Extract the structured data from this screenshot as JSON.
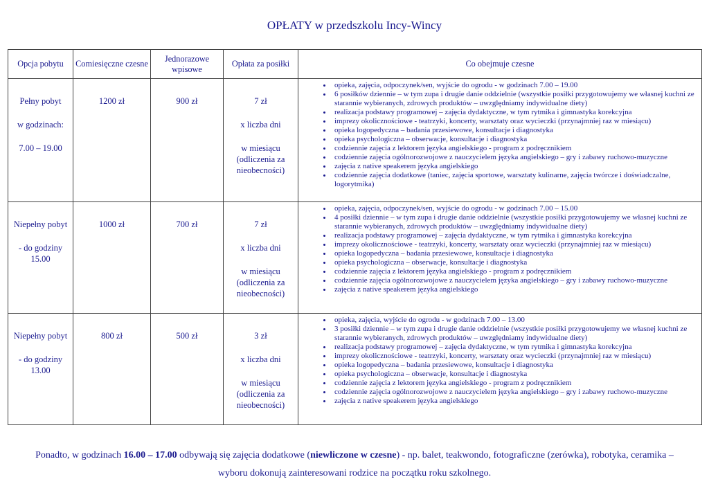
{
  "title": "OPŁATY w przedszkolu Incy-Wincy",
  "colors": {
    "text_navy": "#1b1b8f",
    "border": "#404040",
    "background": "#ffffff"
  },
  "table": {
    "columns": [
      "Opcja pobytu",
      "Comiesięczne czesne",
      "Jednorazowe wpisowe",
      "Opłata za posiłki",
      "Co obejmuje czesne"
    ],
    "rows": [
      {
        "option_lines": [
          "Pełny pobyt",
          "w godzinach:",
          "7.00 – 19.00"
        ],
        "monthly_fee": "1200 zł",
        "entry_fee": "900 zł",
        "meal_fee_lines": [
          "7 zł",
          "x liczba dni",
          "w miesiącu (odliczenia za nieobecności)"
        ],
        "includes": [
          "opieka, zajęcia, odpoczynek/sen, wyjście do ogrodu - w godzinach 7.00 – 19.00",
          "6 posiłków dziennie – w tym zupa i drugie danie oddzielnie (wszystkie posiłki przygotowujemy we własnej kuchni ze starannie wybieranych, zdrowych produktów – uwzględniamy indywidualne diety)",
          "realizacja podstawy programowej – zajęcia dydaktyczne, w tym rytmika i gimnastyka korekcyjna",
          "imprezy okolicznościowe - teatrzyki, koncerty, warsztaty oraz wycieczki (przynajmniej raz w miesiącu)",
          "opieka logopedyczna – badania przesiewowe, konsultacje i diagnostyka",
          "opieka psychologiczna – obserwacje, konsultacje i diagnostyka",
          "codziennie zajęcia z lektorem języka angielskiego - program z podręcznikiem",
          "codziennie zajęcia ogólnorozwojowe z nauczycielem języka angielskiego – gry i zabawy ruchowo-muzyczne",
          "zajęcia z native speakerem języka angielskiego",
          "codziennie zajęcia dodatkowe (taniec, zajęcia sportowe, warsztaty kulinarne, zajęcia twórcze i doświadczalne, logorytmika)"
        ]
      },
      {
        "option_lines": [
          "Niepełny pobyt",
          "- do godziny 15.00"
        ],
        "monthly_fee": "1000 zł",
        "entry_fee": "700 zł",
        "meal_fee_lines": [
          "7 zł",
          "x liczba dni",
          "w miesiącu (odliczenia za nieobecności)"
        ],
        "includes": [
          "opieka, zajęcia, odpoczynek/sen, wyjście do ogrodu - w godzinach 7.00 – 15.00",
          "4 posiłki dziennie – w tym zupa i drugie danie oddzielnie (wszystkie posiłki przygotowujemy we własnej kuchni ze starannie wybieranych, zdrowych produktów – uwzględniamy indywidualne diety)",
          "realizacja podstawy programowej – zajęcia dydaktyczne, w tym rytmika i gimnastyka korekcyjna",
          "imprezy okolicznościowe - teatrzyki, koncerty, warsztaty oraz wycieczki (przynajmniej raz w miesiącu)",
          "opieka logopedyczna – badania przesiewowe, konsultacje i diagnostyka",
          "opieka psychologiczna – obserwacje, konsultacje i diagnostyka",
          "codziennie zajęcia z lektorem języka angielskiego - program z podręcznikiem",
          "codziennie zajęcia ogólnorozwojowe z nauczycielem języka angielskiego – gry i zabawy ruchowo-muzyczne",
          "zajęcia z native speakerem języka angielskiego"
        ]
      },
      {
        "option_lines": [
          "Niepełny pobyt",
          "- do godziny 13.00"
        ],
        "monthly_fee": "800 zł",
        "entry_fee": "500 zł",
        "meal_fee_lines": [
          "3 zł",
          "x liczba dni",
          "w miesiącu (odliczenia za nieobecności)"
        ],
        "includes": [
          "opieka, zajęcia, wyjście do ogrodu - w godzinach 7.00 – 13.00",
          "3 posiłki dziennie – w tym zupa i drugie danie oddzielnie (wszystkie posiłki przygotowujemy we własnej kuchni ze starannie wybieranych, zdrowych produktów – uwzględniamy indywidualne diety)",
          "realizacja podstawy programowej – zajęcia dydaktyczne, w tym rytmika i gimnastyka korekcyjna",
          "imprezy okolicznościowe - teatrzyki, koncerty, warsztaty oraz wycieczki (przynajmniej raz w miesiącu)",
          "opieka logopedyczna – badania przesiewowe, konsultacje i diagnostyka",
          "opieka psychologiczna – obserwacje, konsultacje i diagnostyka",
          "codziennie zajęcia z lektorem języka angielskiego - program z podręcznikiem",
          "codziennie zajęcia ogólnorozwojowe z nauczycielem języka angielskiego – gry i zabawy ruchowo-muzyczne",
          "zajęcia z native speakerem języka angielskiego"
        ]
      }
    ]
  },
  "footer": {
    "segments": [
      {
        "text": "Ponadto, w godzinach ",
        "bold": false
      },
      {
        "text": "16.00 – 17.00",
        "bold": true
      },
      {
        "text": " odbywają się zajęcia dodatkowe (",
        "bold": false
      },
      {
        "text": "niewliczone w czesne",
        "bold": true
      },
      {
        "text": ") - np. balet, teakwondo, fotograficzne (zerówka), robotyka, ceramika – wyboru dokonują zainteresowani rodzice na początku roku szkolnego.",
        "bold": false
      }
    ]
  }
}
